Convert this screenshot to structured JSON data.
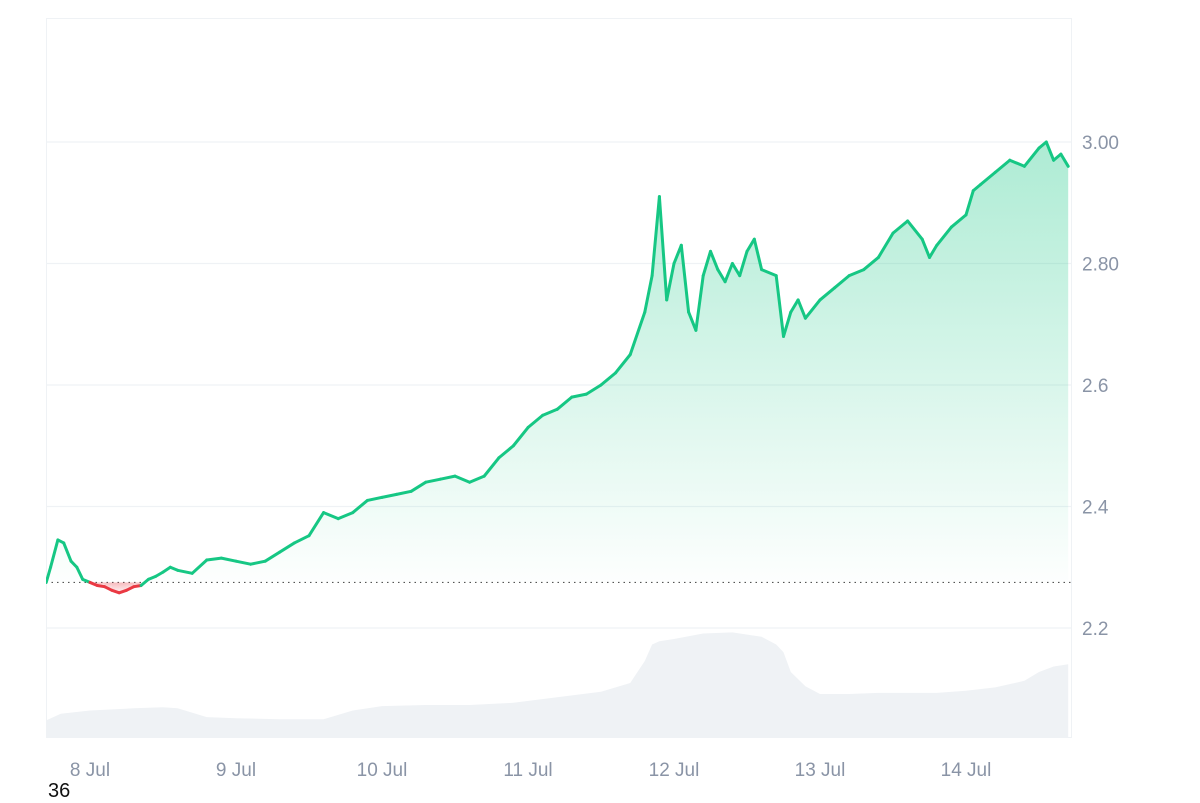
{
  "corner_text": "36",
  "chart_data": {
    "type": "area",
    "title": "",
    "xlabel": "",
    "ylabel": "",
    "x_tick_labels": [
      "8 Jul",
      "9 Jul",
      "10 Jul",
      "11 Jul",
      "12 Jul",
      "13 Jul",
      "14 Jul"
    ],
    "y_tick_labels": [
      "2.2",
      "2.4",
      "2.6",
      "2.80",
      "3.00"
    ],
    "y_ticks": [
      2.2,
      2.4,
      2.6,
      2.8,
      3.0
    ],
    "ylim": [
      2.0,
      3.2
    ],
    "xlim": [
      -0.3,
      6.7
    ],
    "baseline": 2.275,
    "grid": true,
    "legend": "none",
    "colors": {
      "up": "#16c784",
      "down": "#ea3943",
      "volume": "#eff2f5",
      "grid": "#eff2f5",
      "axis_text": "#8a94a6"
    },
    "series": [
      {
        "values_x_days_from_8_Jul": [
          -0.3,
          -0.27,
          -0.22,
          -0.18,
          -0.13,
          -0.09,
          -0.05,
          0.0,
          0.05,
          0.1,
          0.15,
          0.2,
          0.25,
          0.3,
          0.35,
          0.4,
          0.45,
          0.5,
          0.55,
          0.6,
          0.7,
          0.8,
          0.9,
          1.0,
          1.1,
          1.2,
          1.3,
          1.4,
          1.5,
          1.6,
          1.7,
          1.8,
          1.9,
          2.0,
          2.1,
          2.2,
          2.3,
          2.4,
          2.5,
          2.6,
          2.7,
          2.8,
          2.9,
          3.0,
          3.1,
          3.2,
          3.3,
          3.4,
          3.5,
          3.6,
          3.7,
          3.8,
          3.85,
          3.9,
          3.95,
          4.0,
          4.05,
          4.1,
          4.15,
          4.2,
          4.25,
          4.3,
          4.35,
          4.4,
          4.45,
          4.5,
          4.55,
          4.6,
          4.7,
          4.75,
          4.8,
          4.85,
          4.9,
          5.0,
          5.1,
          5.2,
          5.3,
          5.4,
          5.5,
          5.6,
          5.7,
          5.75,
          5.8,
          5.9,
          6.0,
          6.05,
          6.1,
          6.2,
          6.3,
          6.4,
          6.5,
          6.55,
          6.6,
          6.65,
          6.7
        ],
        "values_price": [
          2.275,
          2.3,
          2.345,
          2.34,
          2.31,
          2.3,
          2.28,
          2.275,
          2.27,
          2.268,
          2.262,
          2.258,
          2.262,
          2.268,
          2.27,
          2.28,
          2.285,
          2.292,
          2.3,
          2.295,
          2.29,
          2.312,
          2.315,
          2.31,
          2.305,
          2.31,
          2.325,
          2.34,
          2.352,
          2.39,
          2.38,
          2.39,
          2.41,
          2.415,
          2.42,
          2.425,
          2.44,
          2.445,
          2.45,
          2.44,
          2.45,
          2.48,
          2.5,
          2.53,
          2.55,
          2.56,
          2.58,
          2.585,
          2.6,
          2.62,
          2.65,
          2.72,
          2.78,
          2.91,
          2.74,
          2.8,
          2.83,
          2.72,
          2.69,
          2.78,
          2.82,
          2.79,
          2.77,
          2.8,
          2.78,
          2.82,
          2.84,
          2.79,
          2.78,
          2.68,
          2.72,
          2.74,
          2.71,
          2.74,
          2.76,
          2.78,
          2.79,
          2.81,
          2.85,
          2.87,
          2.84,
          2.81,
          2.83,
          2.86,
          2.88,
          2.92,
          2.93,
          2.95,
          2.97,
          2.96,
          2.99,
          3.0,
          2.97,
          2.98,
          2.96
        ]
      }
    ],
    "volume_relative": {
      "x_days_from_8_Jul": [
        -0.3,
        -0.2,
        0.0,
        0.3,
        0.5,
        0.6,
        0.8,
        1.0,
        1.3,
        1.6,
        1.8,
        2.0,
        2.3,
        2.6,
        2.9,
        3.2,
        3.5,
        3.7,
        3.8,
        3.85,
        3.9,
        4.0,
        4.2,
        4.4,
        4.6,
        4.7,
        4.75,
        4.8,
        4.9,
        5.0,
        5.2,
        5.4,
        5.6,
        5.8,
        6.0,
        6.2,
        6.4,
        6.5,
        6.6,
        6.7
      ],
      "level_0_to_1": [
        0.16,
        0.22,
        0.25,
        0.27,
        0.28,
        0.27,
        0.19,
        0.18,
        0.17,
        0.17,
        0.25,
        0.29,
        0.3,
        0.3,
        0.32,
        0.37,
        0.42,
        0.5,
        0.7,
        0.85,
        0.88,
        0.9,
        0.95,
        0.96,
        0.92,
        0.85,
        0.78,
        0.6,
        0.47,
        0.4,
        0.4,
        0.41,
        0.41,
        0.41,
        0.43,
        0.46,
        0.52,
        0.6,
        0.65,
        0.67
      ]
    }
  }
}
